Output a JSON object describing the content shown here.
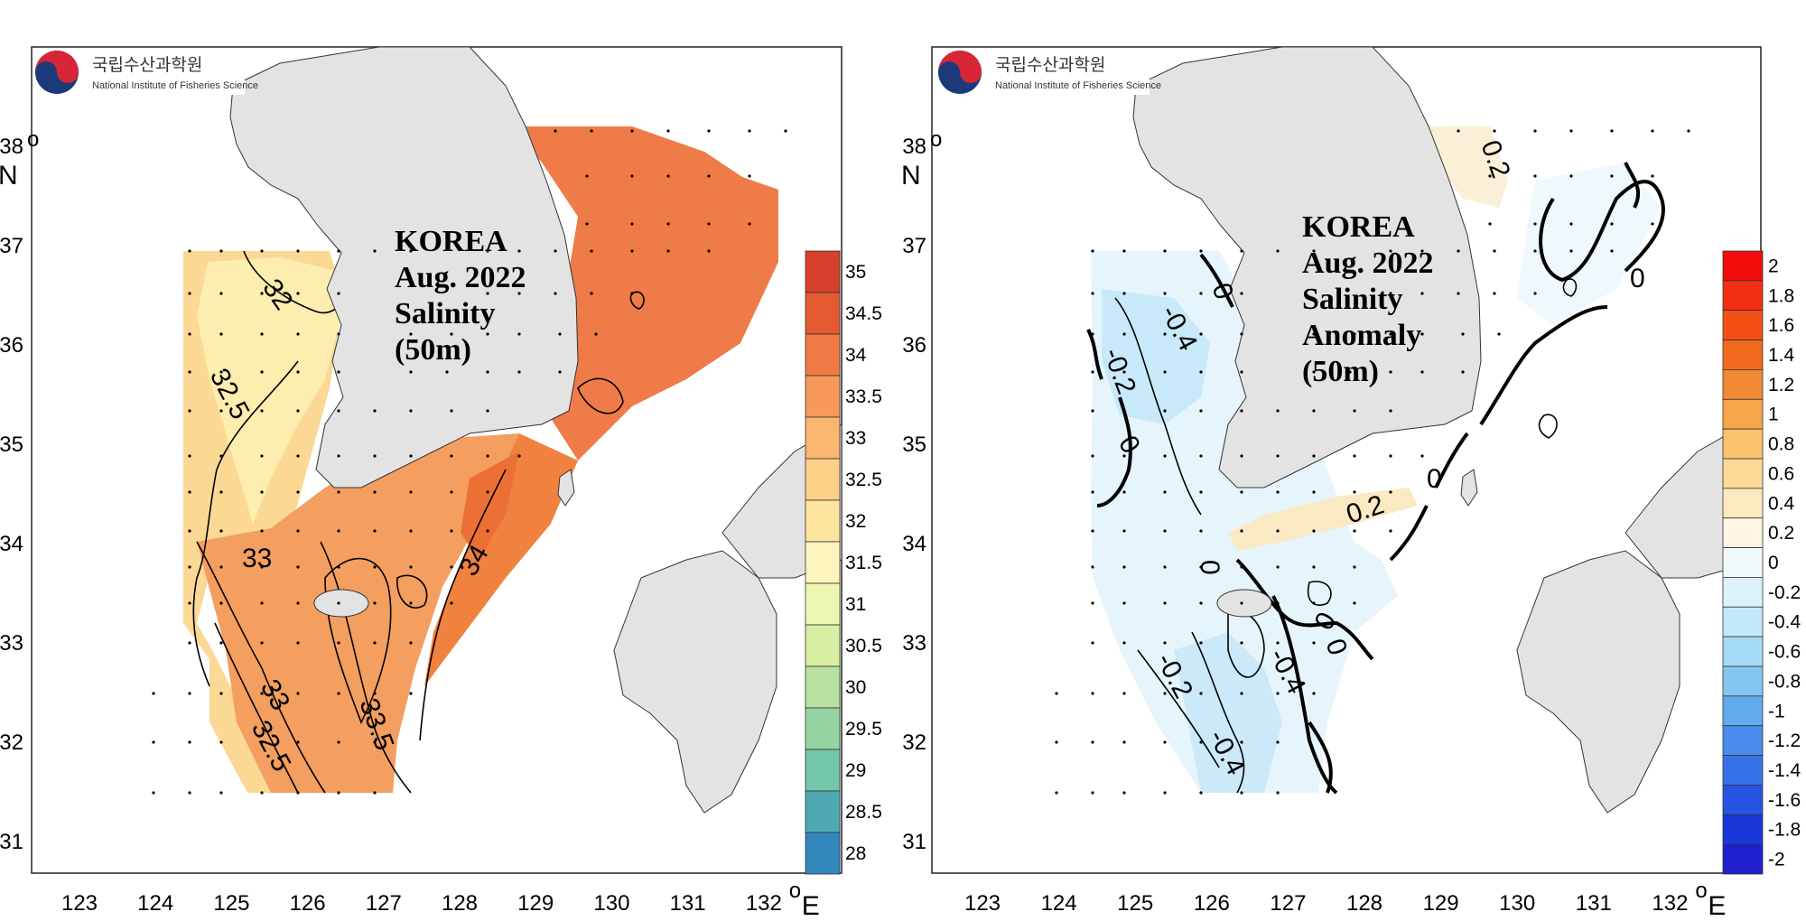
{
  "logo": {
    "korean": "국립수산과학원",
    "english": "National Institute of Fisheries Science"
  },
  "axes": {
    "x_ticks": [
      "123",
      "124",
      "125",
      "126",
      "127",
      "128",
      "129",
      "130",
      "131",
      "132"
    ],
    "y_ticks": [
      "38",
      "37",
      "36",
      "35",
      "34",
      "33",
      "32",
      "31"
    ],
    "lon_unit": "E",
    "lat_unit": "N",
    "degree": "o"
  },
  "maps": [
    {
      "title_lines": [
        "KOREA",
        "Aug. 2022",
        "Salinity",
        "(50m)"
      ],
      "variable": "Salinity",
      "depth": "50m",
      "colorbar": {
        "labels": [
          "35",
          "34.5",
          "34",
          "33.5",
          "33",
          "32.5",
          "32",
          "31.5",
          "31",
          "30.5",
          "30",
          "29.5",
          "29",
          "28.5",
          "28"
        ],
        "colors": [
          "#d7402b",
          "#e55a32",
          "#f07a45",
          "#f6995a",
          "#fab56e",
          "#fcd087",
          "#fde5a0",
          "#fdf5bd",
          "#eef7b2",
          "#d7eea3",
          "#b9e19f",
          "#96d4a3",
          "#73c6a8",
          "#4fa9b2",
          "#3186bc"
        ]
      },
      "contour_labels": [
        "32",
        "32.5",
        "33",
        "33",
        "32.5",
        "33.5",
        "34"
      ]
    },
    {
      "title_lines": [
        "KOREA",
        "Aug. 2022",
        "Salinity",
        "Anomaly",
        "(50m)"
      ],
      "variable": "Salinity Anomaly",
      "depth": "50m",
      "colorbar": {
        "labels": [
          "2",
          "1.8",
          "1.6",
          "1.4",
          "1.2",
          "1",
          "0.8",
          "0.6",
          "0.4",
          "0.2",
          "0",
          "-0.2",
          "-0.4",
          "-0.6",
          "-0.8",
          "-1",
          "-1.2",
          "-1.4",
          "-1.6",
          "-1.8",
          "-2"
        ],
        "colors": [
          "#f20d0d",
          "#f42e10",
          "#f44f15",
          "#f26a1d",
          "#f18a32",
          "#f7a74a",
          "#fbc36b",
          "#fcd996",
          "#fde9c0",
          "#fff5e2",
          "#f1f9fd",
          "#dcf2fb",
          "#c3e8f9",
          "#a6dbf7",
          "#84c6f2",
          "#62aaee",
          "#4a8ceb",
          "#3771e8",
          "#2654e1",
          "#1a38d9",
          "#1f1fcf"
        ]
      },
      "contour_labels": [
        "0.2",
        "0",
        "-0.4",
        "-0.2",
        "0",
        "0",
        "0.2",
        "0",
        "0",
        "-0.4",
        "0",
        "-0.2",
        "-0.4",
        "0"
      ]
    }
  ]
}
